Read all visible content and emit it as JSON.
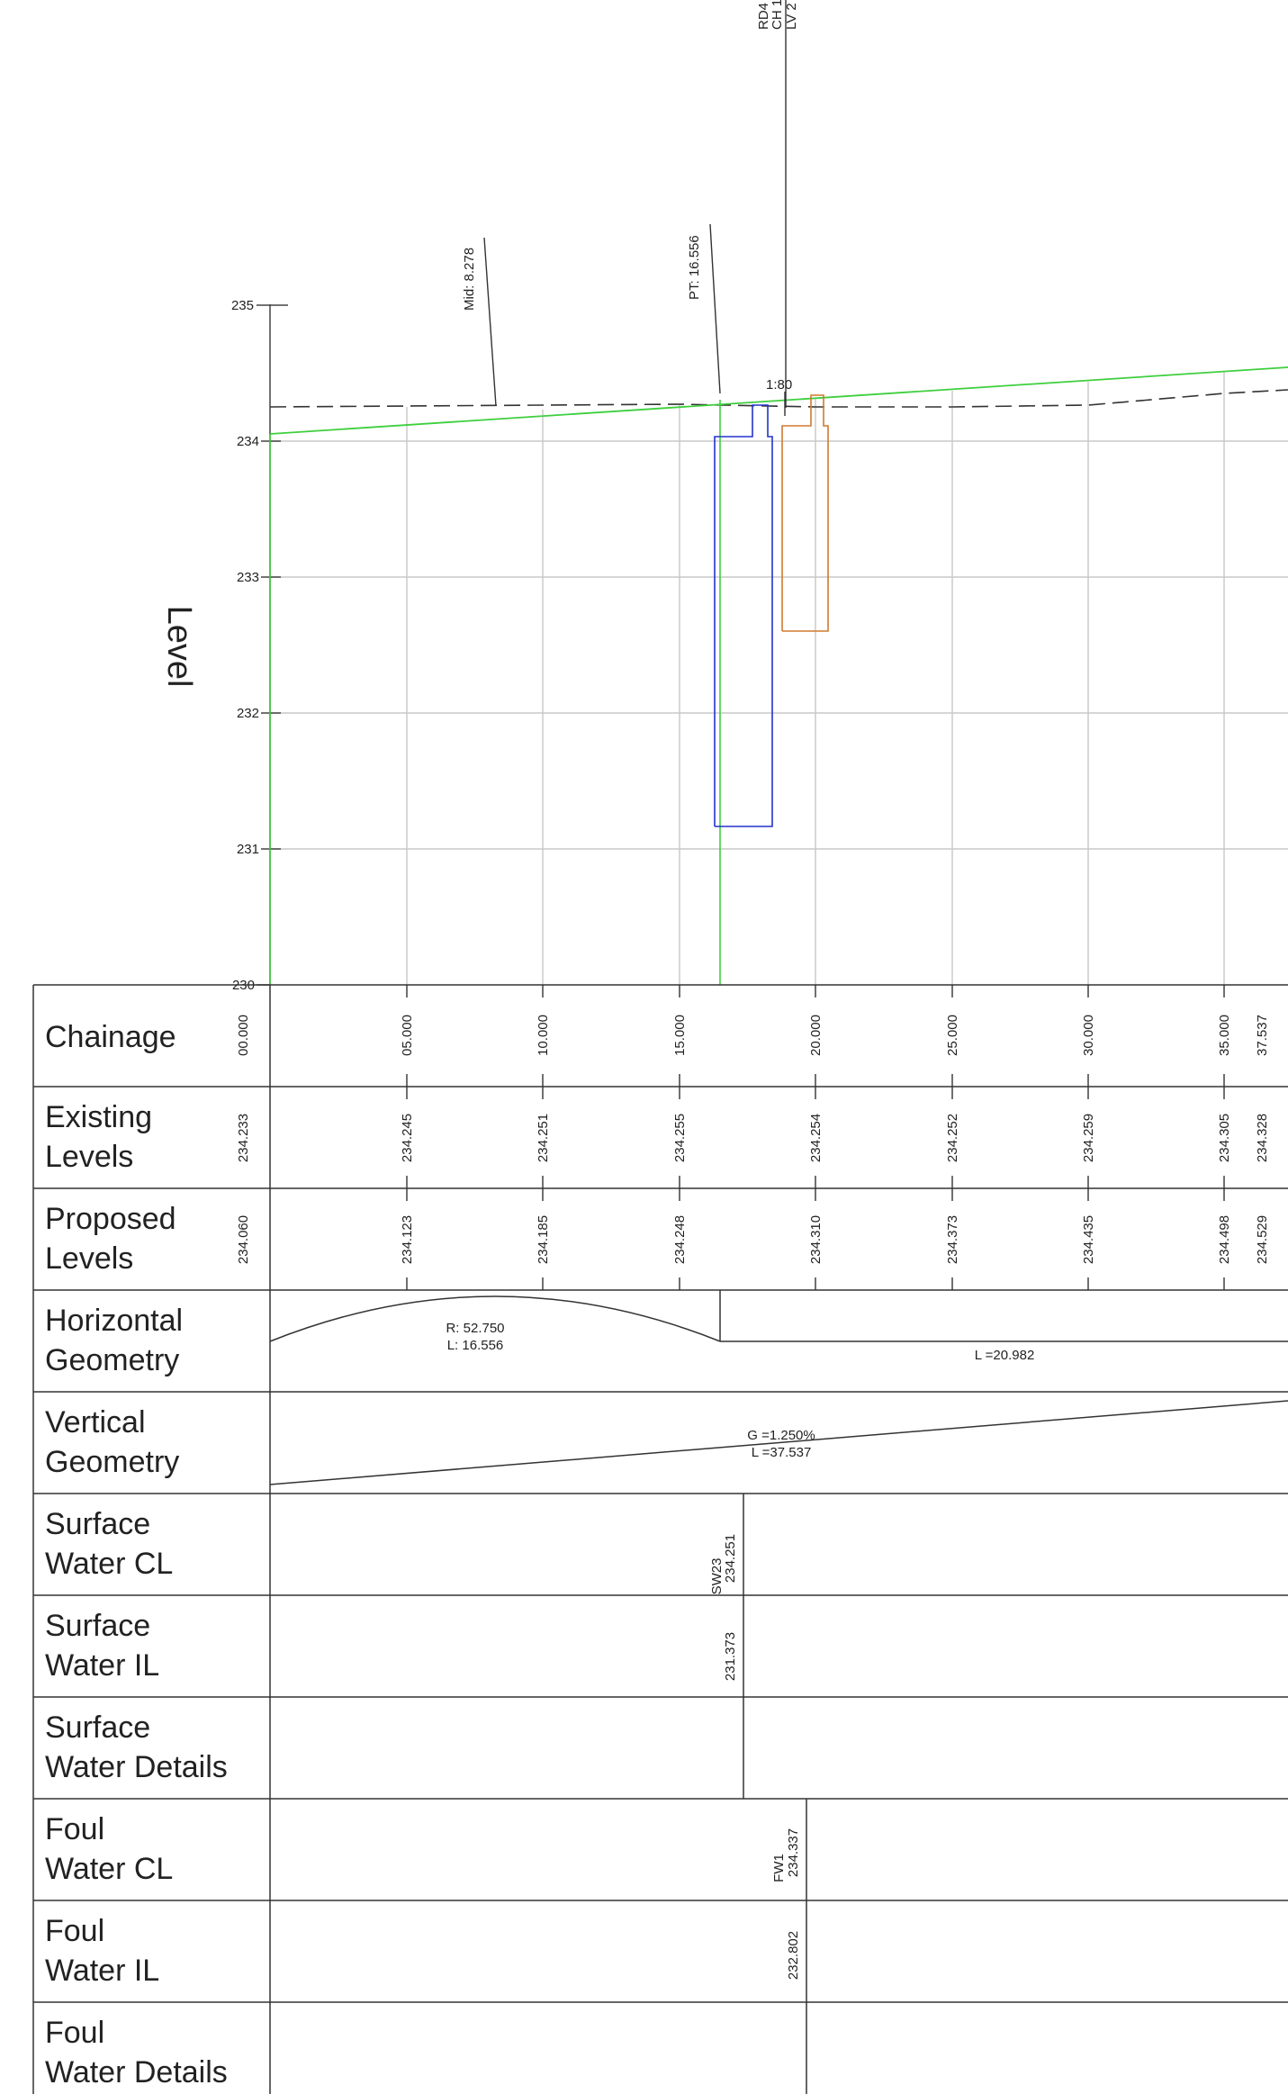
{
  "chart": {
    "axis_title": "Level",
    "level_ticks": [
      "235",
      "234",
      "233",
      "232",
      "231",
      "230"
    ],
    "annotations": {
      "mid": "Mid: 8.278",
      "pt": "PT: 16.556",
      "grade": "1:80",
      "vertex_lines": [
        "RD4",
        "CH 1",
        "LV 2"
      ]
    }
  },
  "table": {
    "rows": [
      {
        "label1": "Chainage",
        "label2": ""
      },
      {
        "label1": "Existing",
        "label2": "Levels"
      },
      {
        "label1": "Proposed",
        "label2": "Levels"
      },
      {
        "label1": "Horizontal",
        "label2": "Geometry"
      },
      {
        "label1": "Vertical",
        "label2": "Geometry"
      },
      {
        "label1": "Surface",
        "label2": "Water CL"
      },
      {
        "label1": "Surface",
        "label2": "Water IL"
      },
      {
        "label1": "Surface",
        "label2": "Water Details"
      },
      {
        "label1": "Foul",
        "label2": "Water CL"
      },
      {
        "label1": "Foul",
        "label2": "Water IL"
      },
      {
        "label1": "Foul",
        "label2": "Water Details"
      }
    ],
    "chainage": [
      "00.000",
      "05.000",
      "10.000",
      "15.000",
      "20.000",
      "25.000",
      "30.000",
      "35.000",
      "37.537"
    ],
    "existing_levels": [
      "234.233",
      "234.245",
      "234.251",
      "234.255",
      "234.254",
      "234.252",
      "234.259",
      "234.305",
      "234.328"
    ],
    "proposed_levels": [
      "234.060",
      "234.123",
      "234.185",
      "234.248",
      "234.310",
      "234.373",
      "234.435",
      "234.498",
      "234.529"
    ],
    "horizontal_geometry": {
      "radius": "R: 52.750",
      "length": "L: 16.556",
      "straight": "L =20.982"
    },
    "vertical_geometry": {
      "grade": "G =1.250%",
      "length": "L =37.537"
    },
    "surface_water_cl": [
      "SW23",
      "234.251"
    ],
    "surface_water_il": "231.373",
    "foul_water_cl": [
      "FW1",
      "234.337"
    ],
    "foul_water_il": "232.802"
  },
  "colors": {
    "proposed": "#3ecf3e",
    "existing": "#333333",
    "surface_structure": "#2233cc",
    "foul_structure": "#d07a2e",
    "grid": "#c8c8c8"
  }
}
